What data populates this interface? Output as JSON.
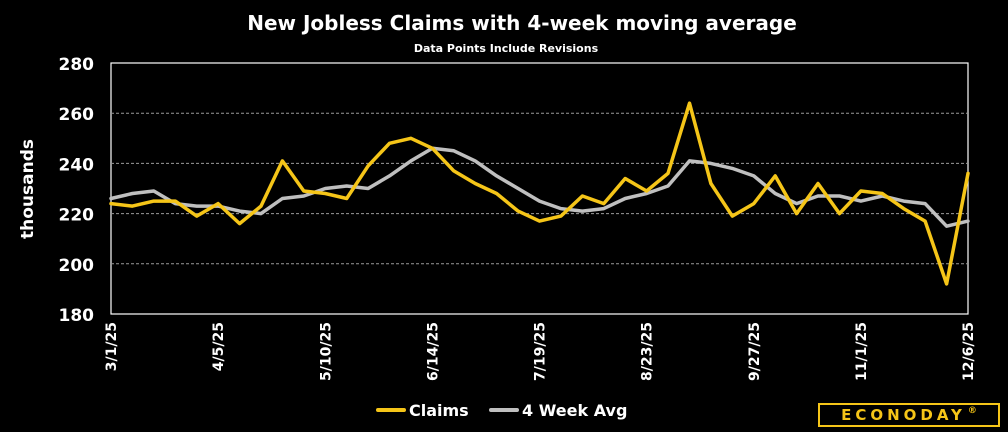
{
  "chart_data": {
    "type": "line",
    "title": "New Jobless Claims with 4-week moving average",
    "subtitle": "Data Points Include Revisions",
    "ylabel": "thousands",
    "ylim": [
      180,
      280
    ],
    "yticks": [
      180,
      200,
      220,
      240,
      260,
      280
    ],
    "grid": true,
    "legend": "bottom-center",
    "x_tick_labels": [
      {
        "index": 0,
        "label": "3/1/25"
      },
      {
        "index": 5,
        "label": "4/5/25"
      },
      {
        "index": 10,
        "label": "5/10/25"
      },
      {
        "index": 15,
        "label": "6/14/25"
      },
      {
        "index": 20,
        "label": "7/19/25"
      },
      {
        "index": 25,
        "label": "8/23/25"
      },
      {
        "index": 30,
        "label": "9/27/25"
      },
      {
        "index": 35,
        "label": "11/1/25"
      },
      {
        "index": 40,
        "label": "12/6/25"
      }
    ],
    "series": [
      {
        "name": "Claims",
        "color": "#f5c518",
        "values": [
          224,
          223,
          225,
          225,
          219,
          224,
          216,
          223,
          241,
          229,
          228,
          226,
          239,
          248,
          250,
          246,
          237,
          232,
          228,
          221,
          217,
          219,
          227,
          224,
          234,
          229,
          236,
          264,
          232,
          219,
          224,
          235,
          220,
          232,
          220,
          229,
          228,
          222,
          217,
          192,
          236
        ]
      },
      {
        "name": "4 Week Avg",
        "color": "#bfbfbf",
        "values": [
          226,
          228,
          229,
          224,
          223,
          223,
          221,
          220,
          226,
          227,
          230,
          231,
          230,
          235,
          241,
          246,
          245,
          241,
          235,
          230,
          225,
          222,
          221,
          222,
          226,
          228,
          231,
          241,
          240,
          238,
          235,
          228,
          224,
          227,
          227,
          225,
          227,
          225,
          224,
          215,
          217
        ]
      }
    ]
  },
  "branding": {
    "logo_text": "ECONODAY",
    "logo_mark": "®"
  }
}
